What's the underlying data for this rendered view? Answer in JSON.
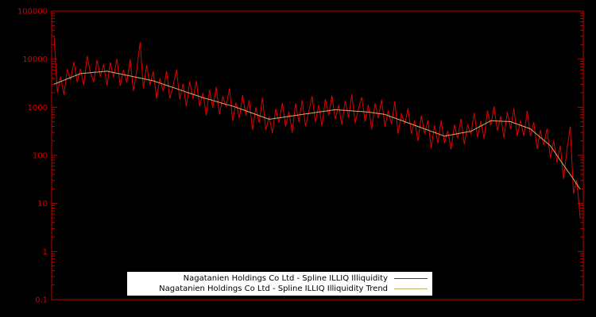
{
  "chart_data": {
    "type": "line",
    "title": "",
    "xlabel": "",
    "ylabel": "",
    "background_color": "#000000",
    "frame_color": "#c00000",
    "tick_label_color": "#d40000",
    "legend_bg": "#ffffff",
    "legend_position": "bottom-center",
    "grid": false,
    "y_scale": "log",
    "ylim": [
      0.1,
      100000
    ],
    "yticks": [
      100000,
      10000,
      1000,
      100,
      10,
      1,
      0.1
    ],
    "ytick_labels": [
      "100000",
      "10000",
      "1000",
      "100",
      "10",
      "1",
      "0.1"
    ],
    "series": [
      {
        "name": "Nagatanien Holdings Co Ltd - Spline ILLIQ Illiquidity",
        "color": "#e00000",
        "values": [
          30200,
          2030,
          4320,
          1830,
          6170,
          3690,
          8820,
          3330,
          6310,
          2860,
          11600,
          5230,
          3350,
          9580,
          4340,
          7840,
          2820,
          8620,
          4180,
          10200,
          2770,
          6010,
          3270,
          10000,
          2160,
          5910,
          22800,
          2470,
          7560,
          2910,
          5630,
          1500,
          4020,
          2140,
          5710,
          1520,
          2880,
          6130,
          1460,
          3090,
          1040,
          3480,
          1480,
          3510,
          1050,
          1990,
          675,
          2300,
          977,
          2630,
          708,
          1700,
          1020,
          2460,
          526,
          1260,
          596,
          1780,
          668,
          1410,
          335,
          1000,
          473,
          1590,
          335,
          631,
          288,
          933,
          479,
          1230,
          398,
          813,
          295,
          1200,
          490,
          1410,
          407,
          831,
          1700,
          490,
          1120,
          407,
          1480,
          676,
          1740,
          562,
          1110,
          436,
          1360,
          603,
          1880,
          468,
          922,
          1620,
          507,
          1120,
          347,
          1200,
          588,
          1440,
          398,
          841,
          447,
          1330,
          282,
          750,
          446,
          944,
          282,
          531,
          199,
          668,
          282,
          531,
          141,
          422,
          178,
          531,
          178,
          326,
          133,
          434,
          224,
          579,
          168,
          434,
          282,
          770,
          236,
          512,
          222,
          857,
          417,
          1040,
          326,
          646,
          228,
          800,
          355,
          944,
          251,
          531,
          251,
          842,
          251,
          491,
          136,
          335,
          164,
          361,
          89,
          200,
          71,
          158,
          32,
          126,
          400,
          16,
          31,
          5
        ]
      },
      {
        "name": "Nagatanien Holdings Co Ltd - Spline ILLIQ Illiquidity Trend",
        "color": "#bdb76b",
        "values": [
          3020,
          3220,
          3430,
          3650,
          3890,
          4140,
          4420,
          4700,
          5010,
          5080,
          5160,
          5230,
          5310,
          5390,
          5460,
          5550,
          5620,
          5440,
          5270,
          5090,
          4930,
          4770,
          4620,
          4470,
          4320,
          4180,
          4050,
          3920,
          3790,
          3670,
          3550,
          3360,
          3190,
          3020,
          2860,
          2710,
          2570,
          2440,
          2310,
          2190,
          2070,
          1960,
          1860,
          1760,
          1670,
          1580,
          1510,
          1450,
          1380,
          1320,
          1260,
          1200,
          1150,
          1100,
          1050,
          1000,
          944,
          891,
          841,
          794,
          750,
          708,
          668,
          631,
          596,
          562,
          575,
          589,
          603,
          617,
          631,
          646,
          661,
          676,
          692,
          708,
          724,
          741,
          759,
          776,
          794,
          813,
          832,
          851,
          871,
          891,
          881,
          871,
          861,
          851,
          841,
          832,
          822,
          813,
          804,
          794,
          776,
          759,
          741,
          724,
          708,
          668,
          631,
          596,
          562,
          531,
          501,
          473,
          447,
          422,
          398,
          376,
          355,
          335,
          316,
          299,
          282,
          266,
          251,
          259,
          266,
          274,
          282,
          290,
          299,
          307,
          316,
          344,
          374,
          407,
          443,
          482,
          525,
          521,
          517,
          513,
          509,
          505,
          501,
          473,
          447,
          422,
          398,
          376,
          355,
          310,
          271,
          237,
          207,
          181,
          158,
          126,
          100,
          79,
          63,
          50,
          40,
          32,
          25,
          20
        ]
      }
    ]
  }
}
